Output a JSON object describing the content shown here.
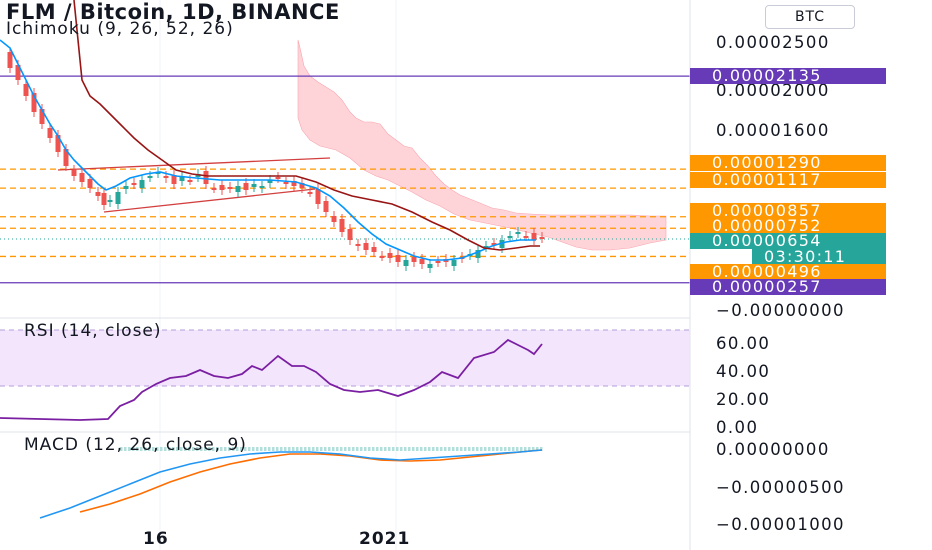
{
  "header": {
    "symbol": "FLM / Bitcoin, 1D, BINANCE",
    "indicator": "Ichimoku (9, 26, 52, 26)",
    "currency_button": "BTC"
  },
  "price_axis": {
    "ticks": [
      "0.00002500",
      "0.00002000",
      "0.00001600",
      "−0.00000000"
    ]
  },
  "price_tags": [
    {
      "label": "0.00002135",
      "color": "#673ab7"
    },
    {
      "label": "0.00001290",
      "color": "#ff9800"
    },
    {
      "label": "0.00001117",
      "color": "#ff9800"
    },
    {
      "label": "0.00000857",
      "color": "#ff9800"
    },
    {
      "label": "0.00000752",
      "color": "#ff9800"
    },
    {
      "label": "0.00000654",
      "color": "#26a69a"
    },
    {
      "label": "0.00000496",
      "color": "#ff9800"
    },
    {
      "label": "0.00000257",
      "color": "#673ab7"
    }
  ],
  "countdown": "03:30:11",
  "rsi": {
    "title": "RSI (14, close)",
    "ticks": [
      "60.00",
      "40.00",
      "20.00",
      "0.00"
    ],
    "upper_band": 70,
    "lower_band": 30,
    "line_color": "#7b1fa2",
    "band_fill": "#f3e5fc"
  },
  "macd": {
    "title": "MACD (12, 26, close, 9)",
    "ticks": [
      "0.00000000",
      "−0.00000500",
      "−0.00001000"
    ],
    "macd_color": "#2196f3",
    "signal_color": "#ff6d00"
  },
  "time_axis": {
    "ticks": [
      "16",
      "2021"
    ]
  },
  "colors": {
    "up_candle": "#26a69a",
    "down_candle": "#ef5350",
    "conversion_line": "#0496ff",
    "base_line": "#991515",
    "cloud_fill": "#ffcdd2",
    "horizontal_line": "#673ab7",
    "dashed_level": "#ff9800"
  },
  "chart_data": {
    "type": "candlestick",
    "y_range": [
      0,
      2.75e-05
    ],
    "horizontal_lines": [
      2.135e-05,
      2.57e-06
    ],
    "levels": [
      1.29e-05,
      1.117e-05,
      8.57e-06,
      7.52e-06,
      4.96e-06
    ],
    "last_price": 6.54e-06
  }
}
